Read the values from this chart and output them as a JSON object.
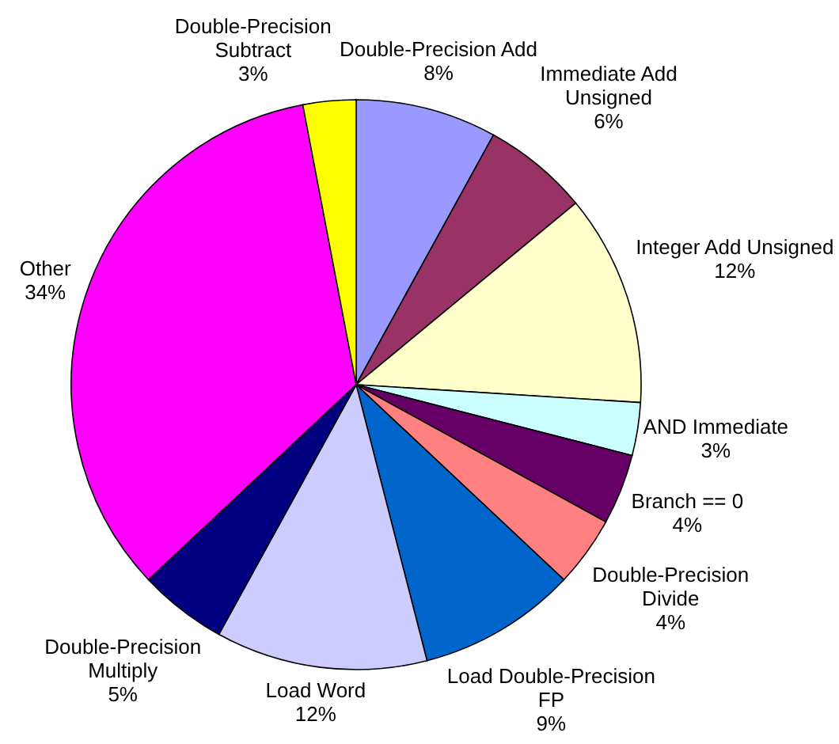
{
  "chart_data": {
    "type": "pie",
    "categories": [
      "Double-Precision Add",
      "Immediate Add Unsigned",
      "Integer Add Unsigned",
      "AND Immediate",
      "Branch == 0",
      "Double-Precision Divide",
      "Load Double-Precision FP",
      "Load Word",
      "Double-Precision Multiply",
      "Other",
      "Double-Precision Subtract"
    ],
    "values": [
      8,
      6,
      12,
      3,
      4,
      4,
      9,
      12,
      5,
      34,
      3
    ],
    "value_labels": [
      "8%",
      "6%",
      "12%",
      "3%",
      "4%",
      "4%",
      "9%",
      "12%",
      "5%",
      "34%",
      "3%"
    ],
    "colors": [
      "#9999ff",
      "#993366",
      "#ffffcc",
      "#ccffff",
      "#660066",
      "#ff8080",
      "#0066cc",
      "#ccccff",
      "#000080",
      "#ff00ff",
      "#ffff00"
    ]
  }
}
